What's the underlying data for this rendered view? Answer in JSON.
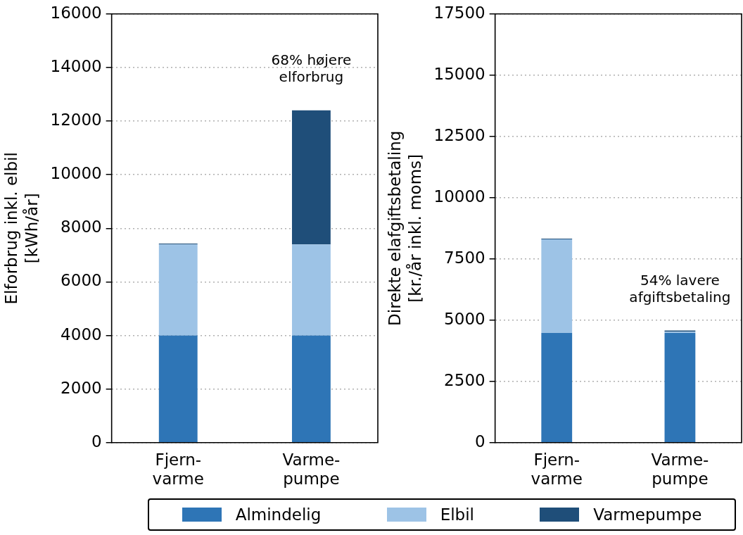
{
  "chart_data": [
    {
      "type": "bar",
      "stacked": true,
      "categories": [
        "Fjern-\nvarme",
        "Varme-\npumpe"
      ],
      "ylabel": "Elforbrug inkl. elbil\n[kWh/år]",
      "ylim": [
        0,
        16000
      ],
      "yticks": [
        0,
        2000,
        4000,
        6000,
        8000,
        10000,
        12000,
        14000,
        16000
      ],
      "grid": "y",
      "legend": "bottom",
      "series": [
        {
          "name": "Almindelig",
          "color": "#2e75b6",
          "values": [
            4000,
            4000
          ]
        },
        {
          "name": "Elbil",
          "color": "#9dc3e6",
          "values": [
            3400,
            3400
          ]
        },
        {
          "name": "Varmepumpe",
          "color": "#1f4e79",
          "values": [
            30,
            5000
          ]
        }
      ],
      "annotations": [
        "68% højere\nelforbrug"
      ]
    },
    {
      "type": "bar",
      "stacked": true,
      "categories": [
        "Fjern-\nvarme",
        "Varme-\npumpe"
      ],
      "ylabel": "Direkte elafgiftsbetaling\n[kr./år inkl. moms]",
      "ylim": [
        0,
        17500
      ],
      "yticks": [
        0,
        2500,
        5000,
        7500,
        10000,
        12500,
        15000,
        17500
      ],
      "grid": "y",
      "series": [
        {
          "color": "#2e75b6",
          "values": [
            4480,
            4480
          ]
        },
        {
          "color": "#9dc3e6",
          "values": [
            3820,
            50
          ]
        },
        {
          "color": "#1f4e79",
          "values": [
            30,
            50
          ]
        }
      ],
      "annotations": [
        "54% lavere\nafgiftsbetaling"
      ]
    }
  ]
}
